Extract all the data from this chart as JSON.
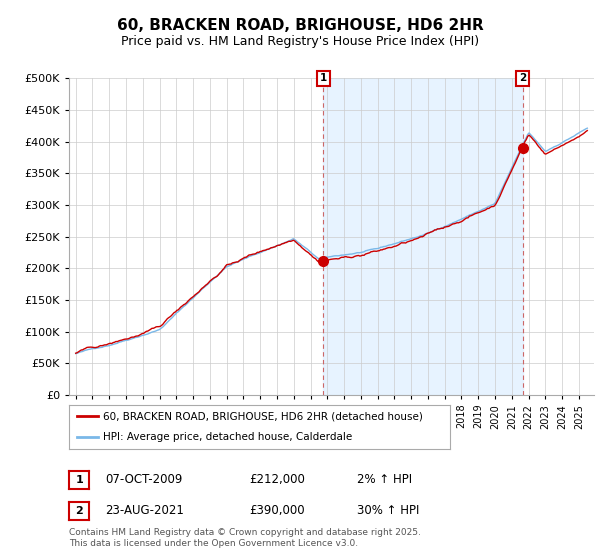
{
  "title": "60, BRACKEN ROAD, BRIGHOUSE, HD6 2HR",
  "subtitle": "Price paid vs. HM Land Registry's House Price Index (HPI)",
  "legend_line1": "60, BRACKEN ROAD, BRIGHOUSE, HD6 2HR (detached house)",
  "legend_line2": "HPI: Average price, detached house, Calderdale",
  "annotation1_label": "1",
  "annotation1_date": "07-OCT-2009",
  "annotation1_price": "£212,000",
  "annotation1_hpi": "2% ↑ HPI",
  "annotation2_label": "2",
  "annotation2_date": "23-AUG-2021",
  "annotation2_price": "£390,000",
  "annotation2_hpi": "30% ↑ HPI",
  "footer": "Contains HM Land Registry data © Crown copyright and database right 2025.\nThis data is licensed under the Open Government Licence v3.0.",
  "hpi_color": "#7ab8e8",
  "price_color": "#cc0000",
  "marker_color": "#cc0000",
  "annotation_box_color": "#cc0000",
  "vline_color": "#cc6666",
  "shade_color": "#ddeeff",
  "ylim": [
    0,
    500000
  ],
  "yticks": [
    0,
    50000,
    100000,
    150000,
    200000,
    250000,
    300000,
    350000,
    400000,
    450000,
    500000
  ],
  "year_start": 1995,
  "year_end": 2025,
  "bg_color": "#ffffff",
  "grid_color": "#cccccc",
  "anno1_year": 2009.77,
  "anno2_year": 2021.64,
  "anno1_price": 212000,
  "anno2_price": 390000
}
